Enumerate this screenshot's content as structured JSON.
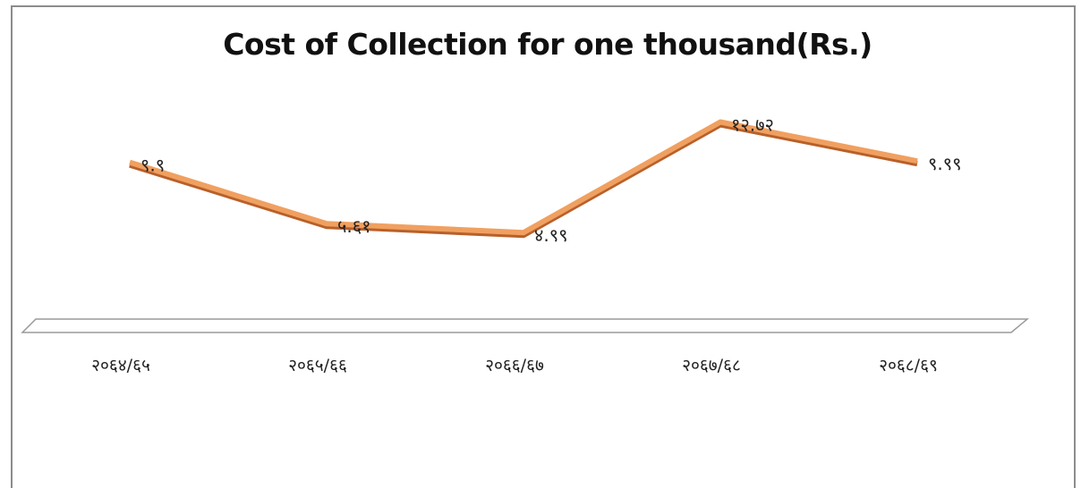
{
  "chart_data": {
    "type": "line",
    "title": "Cost of Collection for one thousand(Rs.)",
    "xlabel": "",
    "ylabel": "",
    "categories": [
      "२०६४/६५",
      "२०६५/६६",
      "२०६६/६७",
      "२०६७/६८",
      "२०६८/६९"
    ],
    "series": [
      {
        "values": [
          9.9,
          5.61,
          4.99,
          12.72,
          9.99
        ],
        "labels": [
          "९.९",
          "५.६१",
          "४.९९",
          "१२.७२",
          "९.९९"
        ]
      }
    ],
    "ylim": [
      0,
      15
    ],
    "grid": false,
    "legend": "none",
    "colors": {
      "line": "#f0a060",
      "line_edge": "#b8602a",
      "floor": "#9a9a9a"
    }
  }
}
